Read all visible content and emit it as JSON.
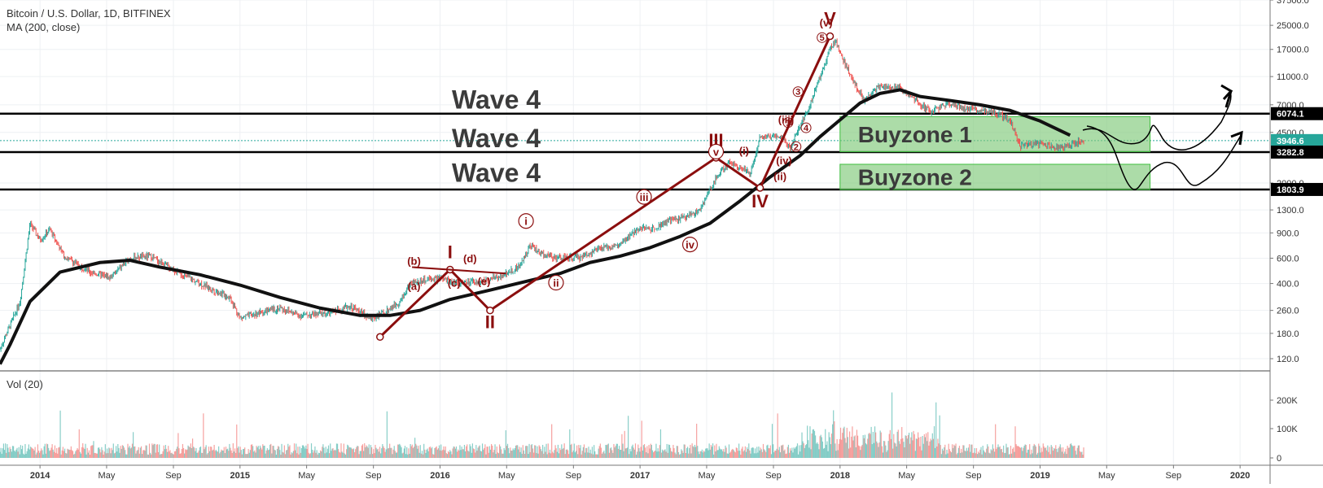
{
  "header": {
    "symbol_line": "Bitcoin / U.S. Dollar, 1D, BITFINEX",
    "indicator_line": "MA (200, close)",
    "volume_label": "Vol (20)"
  },
  "colors": {
    "wave": "#8b0e0e",
    "price_up": "#26a69a",
    "price_down": "#ef5350",
    "ma": "#111111",
    "buyzone_fill": "#7fc97a",
    "buyzone_stroke": "#3fbf3f",
    "current_price_bg": "#26a69a"
  },
  "chart_data": {
    "type": "line",
    "title": "Bitcoin / U.S. Dollar, 1D, BITFINEX",
    "x_axis": {
      "tick_labels": [
        "2014",
        "May",
        "Sep",
        "2015",
        "May",
        "Sep",
        "2016",
        "May",
        "Sep",
        "2017",
        "May",
        "Sep",
        "2018",
        "May",
        "Sep",
        "2019",
        "May",
        "Sep",
        "2020"
      ],
      "tick_dates": [
        2014.0,
        2014.333,
        2014.667,
        2015.0,
        2015.333,
        2015.667,
        2016.0,
        2016.333,
        2016.667,
        2017.0,
        2017.333,
        2017.667,
        2018.0,
        2018.333,
        2018.667,
        2019.0,
        2019.333,
        2019.667,
        2020.0
      ],
      "range": [
        2013.8,
        2020.15
      ]
    },
    "y_axis": {
      "scale": "log",
      "range": [
        100,
        37500
      ],
      "tick_labels": [
        "37500.0",
        "25000.0",
        "17000.0",
        "11000.0",
        "7000.0",
        "4500.0",
        "2000.0",
        "1300.0",
        "900.0",
        "600.0",
        "400.0",
        "260.0",
        "180.0",
        "120.0"
      ]
    },
    "price_labels": [
      {
        "label": "6074.1",
        "value": 6074.1,
        "style": "dark"
      },
      {
        "label": "3946.6",
        "value": 3946.6,
        "style": "current"
      },
      {
        "label": "3282.8",
        "value": 3282.8,
        "style": "dark"
      },
      {
        "label": "1803.9",
        "value": 1803.9,
        "style": "dark"
      }
    ],
    "horizontal_levels": [
      6074.1,
      3282.8,
      1803.9
    ],
    "series": [
      {
        "name": "BTCUSD close (approx)",
        "points": [
          [
            2013.8,
            140
          ],
          [
            2013.9,
            300
          ],
          [
            2013.95,
            1050
          ],
          [
            2014.0,
            800
          ],
          [
            2014.05,
            950
          ],
          [
            2014.12,
            620
          ],
          [
            2014.25,
            480
          ],
          [
            2014.35,
            440
          ],
          [
            2014.45,
            600
          ],
          [
            2014.55,
            620
          ],
          [
            2014.7,
            470
          ],
          [
            2014.85,
            370
          ],
          [
            2014.95,
            320
          ],
          [
            2015.0,
            230
          ],
          [
            2015.1,
            250
          ],
          [
            2015.2,
            270
          ],
          [
            2015.3,
            240
          ],
          [
            2015.45,
            250
          ],
          [
            2015.55,
            280
          ],
          [
            2015.65,
            230
          ],
          [
            2015.7,
            240
          ],
          [
            2015.8,
            300
          ],
          [
            2015.85,
            400
          ],
          [
            2015.95,
            430
          ],
          [
            2016.0,
            430
          ],
          [
            2016.1,
            400
          ],
          [
            2016.2,
            410
          ],
          [
            2016.3,
            450
          ],
          [
            2016.4,
            530
          ],
          [
            2016.45,
            750
          ],
          [
            2016.5,
            650
          ],
          [
            2016.6,
            600
          ],
          [
            2016.7,
            610
          ],
          [
            2016.8,
            700
          ],
          [
            2016.9,
            740
          ],
          [
            2017.0,
            990
          ],
          [
            2017.05,
            950
          ],
          [
            2017.15,
            1100
          ],
          [
            2017.22,
            1150
          ],
          [
            2017.3,
            1300
          ],
          [
            2017.38,
            2200
          ],
          [
            2017.45,
            2800
          ],
          [
            2017.52,
            2500
          ],
          [
            2017.55,
            2300
          ],
          [
            2017.6,
            4200
          ],
          [
            2017.7,
            4300
          ],
          [
            2017.75,
            3500
          ],
          [
            2017.8,
            5000
          ],
          [
            2017.85,
            7000
          ],
          [
            2017.9,
            11000
          ],
          [
            2017.95,
            17500
          ],
          [
            2017.98,
            19000
          ],
          [
            2018.02,
            14000
          ],
          [
            2018.07,
            10000
          ],
          [
            2018.12,
            7500
          ],
          [
            2018.2,
            9500
          ],
          [
            2018.3,
            9200
          ],
          [
            2018.38,
            7500
          ],
          [
            2018.45,
            6300
          ],
          [
            2018.55,
            7200
          ],
          [
            2018.65,
            6500
          ],
          [
            2018.75,
            6400
          ],
          [
            2018.85,
            5500
          ],
          [
            2018.9,
            3600
          ],
          [
            2018.95,
            3700
          ],
          [
            2019.0,
            3800
          ],
          [
            2019.1,
            3500
          ],
          [
            2019.2,
            3900
          ],
          [
            2019.22,
            3946.6
          ]
        ]
      },
      {
        "name": "MA (200, close)",
        "points": [
          [
            2013.8,
            110
          ],
          [
            2013.85,
            150
          ],
          [
            2013.95,
            300
          ],
          [
            2014.1,
            480
          ],
          [
            2014.3,
            560
          ],
          [
            2014.45,
            580
          ],
          [
            2014.6,
            520
          ],
          [
            2014.8,
            460
          ],
          [
            2015.0,
            390
          ],
          [
            2015.2,
            320
          ],
          [
            2015.4,
            270
          ],
          [
            2015.6,
            240
          ],
          [
            2015.75,
            240
          ],
          [
            2015.9,
            260
          ],
          [
            2016.05,
            310
          ],
          [
            2016.25,
            360
          ],
          [
            2016.45,
            420
          ],
          [
            2016.6,
            470
          ],
          [
            2016.75,
            560
          ],
          [
            2016.9,
            620
          ],
          [
            2017.05,
            710
          ],
          [
            2017.2,
            850
          ],
          [
            2017.35,
            1050
          ],
          [
            2017.5,
            1500
          ],
          [
            2017.65,
            2200
          ],
          [
            2017.8,
            3100
          ],
          [
            2017.9,
            4200
          ],
          [
            2018.0,
            5500
          ],
          [
            2018.1,
            7200
          ],
          [
            2018.2,
            8400
          ],
          [
            2018.3,
            8900
          ],
          [
            2018.4,
            8000
          ],
          [
            2018.55,
            7500
          ],
          [
            2018.7,
            7000
          ],
          [
            2018.85,
            6400
          ],
          [
            2019.0,
            5400
          ],
          [
            2019.15,
            4300
          ]
        ]
      },
      {
        "name": "Volume",
        "y_axis_labels": [
          "200K",
          "100K",
          "0"
        ]
      }
    ]
  },
  "waves": {
    "main_degree": [
      {
        "label": "I",
        "date": 2016.05,
        "price": 500
      },
      {
        "label": "II",
        "date": 2016.25,
        "price": 260
      },
      {
        "label": "III",
        "date": 2017.38,
        "price": 3000
      },
      {
        "label": "IV",
        "date": 2017.6,
        "price": 1850
      },
      {
        "label": "V",
        "date": 2017.95,
        "price": 21000
      }
    ],
    "wave_start": {
      "date": 2015.7,
      "price": 170
    },
    "sub_labels": [
      "(a)",
      "(b)",
      "(c)",
      "(d)",
      "(e)",
      "i",
      "ii",
      "iii",
      "iv",
      "v",
      "(i)",
      "(ii)",
      "(iii)",
      "(iv)",
      "(v)",
      "1",
      "2",
      "3",
      "4",
      "5"
    ]
  },
  "annotations": {
    "wave_texts": [
      "Wave 4",
      "Wave 4",
      "Wave 4"
    ],
    "buyzones": [
      {
        "label": "Buyzone 1",
        "top": 5800,
        "bottom": 3300,
        "start": 2018.0,
        "end": 2019.55
      },
      {
        "label": "Buyzone 2",
        "top": 2700,
        "bottom": 1800,
        "start": 2018.0,
        "end": 2019.55
      }
    ]
  }
}
